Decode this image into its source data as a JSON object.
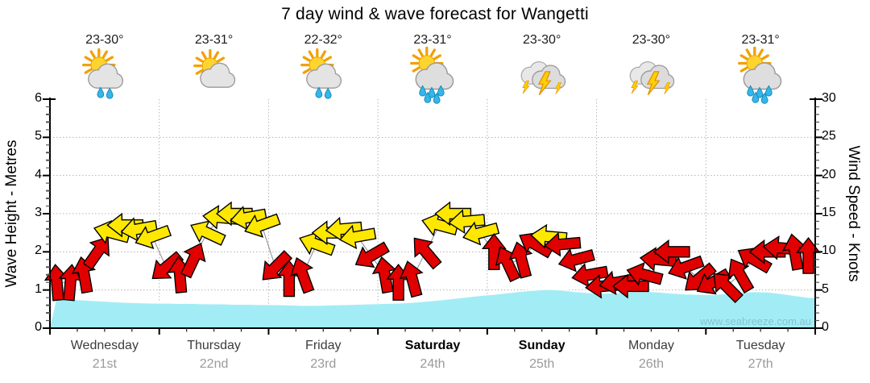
{
  "title": "7 day wind & wave forecast for Wangetti",
  "watermark": "www.seabreeze.com.au",
  "days": [
    {
      "name": "Wednesday",
      "date": "21st",
      "temp": "23-30°",
      "icon": "sun-cloud-showers",
      "weekend": false
    },
    {
      "name": "Thursday",
      "date": "22nd",
      "temp": "23-31°",
      "icon": "sun-cloud",
      "weekend": false
    },
    {
      "name": "Friday",
      "date": "23rd",
      "temp": "22-32°",
      "icon": "sun-cloud-showers",
      "weekend": false
    },
    {
      "name": "Saturday",
      "date": "24th",
      "temp": "23-31°",
      "icon": "sun-cloud-rain",
      "weekend": true
    },
    {
      "name": "Sunday",
      "date": "25th",
      "temp": "23-30°",
      "icon": "thunderstorm",
      "weekend": true
    },
    {
      "name": "Monday",
      "date": "26th",
      "temp": "23-30°",
      "icon": "thunderstorm",
      "weekend": false
    },
    {
      "name": "Tuesday",
      "date": "27th",
      "temp": "23-31°",
      "icon": "sun-cloud-rain",
      "weekend": false
    }
  ],
  "axes": {
    "left": {
      "title": "Wave Height - Metres",
      "ticks": [
        0,
        1,
        2,
        3,
        4,
        5,
        6
      ],
      "range": [
        0,
        6
      ]
    },
    "right": {
      "title": "Wind Speed - Knots",
      "ticks": [
        0,
        5,
        10,
        15,
        20,
        25,
        30
      ],
      "range": [
        0,
        30
      ]
    }
  },
  "chart_data": {
    "type": "line",
    "subtype": "wind-arrow-series-with-wave-area",
    "interval_hours": 3,
    "points_per_day": 8,
    "grid": true,
    "ylim_wave_metres": [
      0,
      6
    ],
    "ylim_wind_knots": [
      0,
      30
    ],
    "wind_dir_convention": "degrees arrow points toward; 0=up(N), -90=left(W), 90=right(E)",
    "wind_knots": [
      6,
      6,
      7,
      10,
      12.5,
      13.5,
      13,
      12,
      8,
      7,
      9,
      12.5,
      14.5,
      15,
      14.5,
      13.5,
      8,
      6.5,
      7,
      11,
      12.5,
      13,
      12,
      9.5,
      7,
      6,
      6.5,
      10,
      13.5,
      15,
      14,
      12.5,
      10,
      8.5,
      9,
      11,
      12,
      11,
      9,
      7,
      5.5,
      6,
      5.5,
      7,
      9,
      10,
      8,
      6.5,
      6,
      5.5,
      7,
      9,
      10,
      10.5,
      10,
      9.5
    ],
    "wind_dir_deg": [
      -5,
      5,
      -10,
      35,
      -75,
      -90,
      -100,
      -110,
      -130,
      -5,
      25,
      -65,
      -85,
      -90,
      -100,
      -110,
      -135,
      0,
      -20,
      -70,
      -90,
      -95,
      -100,
      -120,
      -10,
      0,
      -15,
      -40,
      -75,
      -90,
      -95,
      -105,
      0,
      -25,
      -15,
      -60,
      -85,
      -95,
      -105,
      -100,
      -95,
      -100,
      -90,
      -75,
      -85,
      -90,
      -110,
      -130,
      -120,
      -45,
      -30,
      -60,
      -90,
      -85,
      -10,
      0
    ],
    "wind_arrow_color": [
      "red",
      "red",
      "red",
      "red",
      "yellow",
      "yellow",
      "yellow",
      "yellow",
      "red",
      "red",
      "red",
      "yellow",
      "yellow",
      "yellow",
      "yellow",
      "yellow",
      "red",
      "red",
      "red",
      "yellow",
      "yellow",
      "yellow",
      "yellow",
      "red",
      "red",
      "red",
      "red",
      "red",
      "yellow",
      "yellow",
      "yellow",
      "yellow",
      "red",
      "red",
      "red",
      "red",
      "yellow",
      "red",
      "red",
      "red",
      "red",
      "red",
      "red",
      "red",
      "red",
      "red",
      "red",
      "red",
      "red",
      "red",
      "red",
      "red",
      "red",
      "red",
      "red",
      "red"
    ],
    "wave_metres": [
      0.78,
      0.76,
      0.74,
      0.72,
      0.7,
      0.68,
      0.67,
      0.66,
      0.66,
      0.65,
      0.65,
      0.64,
      0.64,
      0.63,
      0.63,
      0.62,
      0.62,
      0.61,
      0.6,
      0.6,
      0.61,
      0.62,
      0.63,
      0.64,
      0.65,
      0.66,
      0.68,
      0.71,
      0.74,
      0.78,
      0.82,
      0.86,
      0.89,
      0.93,
      0.97,
      1.0,
      1.02,
      1.0,
      0.96,
      0.93,
      0.92,
      0.93,
      0.96,
      0.97,
      0.95,
      0.92,
      0.9,
      0.89,
      0.88,
      0.91,
      0.94,
      0.96,
      0.95,
      0.91,
      0.86,
      0.81
    ]
  },
  "colors": {
    "arrow_red": "#e10000",
    "arrow_yellow": "#ffe800",
    "arrow_outline": "#000000",
    "connector": "#8c8c8c",
    "wave_fill": "#a2ecf6",
    "wave_edge": "#ffffff",
    "grid": "#b3b3b3",
    "axis": "#000000",
    "date_text": "#9a9a9a",
    "watermark_text": "#7fbdcb"
  }
}
